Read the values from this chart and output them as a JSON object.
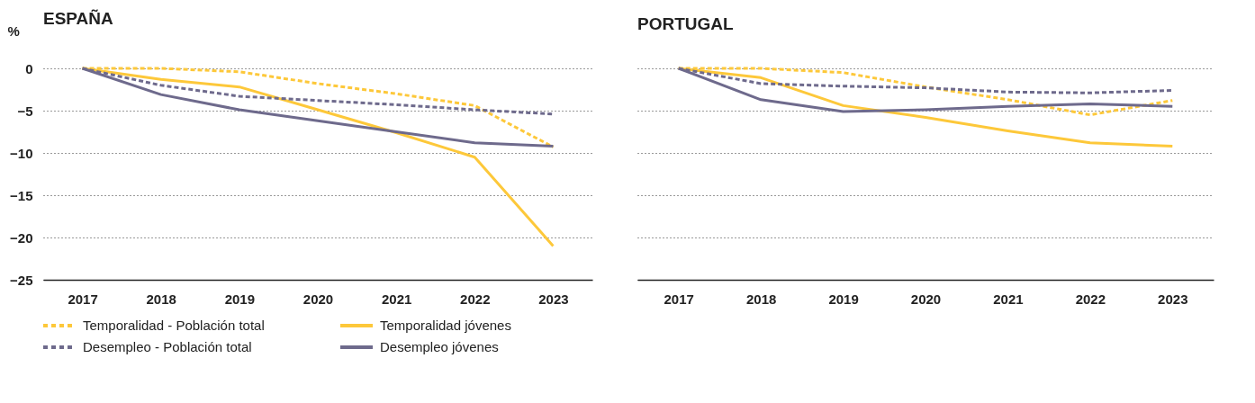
{
  "chart_data": [
    {
      "type": "line",
      "title": "ESPAÑA",
      "ylabel": "%",
      "categories": [
        "2017",
        "2018",
        "2019",
        "2020",
        "2021",
        "2022",
        "2023"
      ],
      "ylim": [
        -25,
        0
      ],
      "yticks": [
        0,
        -5,
        -10,
        -15,
        -20,
        -25
      ],
      "grid": "y",
      "legend": "bottom",
      "series": [
        {
          "name": "Temporalidad - Población total",
          "color": "#fdc83a",
          "line_style": "dashed",
          "values": [
            0,
            0,
            -0.4,
            -1.8,
            -3,
            -4.4,
            -9.3
          ]
        },
        {
          "name": "Temporalidad jóvenes",
          "color": "#fdc83a",
          "line_style": "solid",
          "values": [
            0,
            -1.3,
            -2.2,
            -4.9,
            -7.6,
            -10.5,
            -21
          ]
        },
        {
          "name": "Desempleo - Población total",
          "color": "#6e6a8c",
          "line_style": "dashed",
          "values": [
            0,
            -2,
            -3.3,
            -3.8,
            -4.3,
            -4.9,
            -5.4
          ]
        },
        {
          "name": "Desempleo jóvenes",
          "color": "#6e6a8c",
          "line_style": "solid",
          "values": [
            0,
            -3.1,
            -4.9,
            -6.2,
            -7.5,
            -8.8,
            -9.2
          ]
        }
      ]
    },
    {
      "type": "line",
      "title": "PORTUGAL",
      "categories": [
        "2017",
        "2018",
        "2019",
        "2020",
        "2021",
        "2022",
        "2023"
      ],
      "ylim": [
        -25,
        0
      ],
      "yticks": [
        0,
        -5,
        -10,
        -15,
        -20,
        -25
      ],
      "grid": "y",
      "tick_labels": "x",
      "series": [
        {
          "color": "#fdc83a",
          "line_style": "dashed",
          "values": [
            0,
            0,
            -0.5,
            -2.2,
            -3.7,
            -5.5,
            -3.8
          ]
        },
        {
          "color": "#fdc83a",
          "line_style": "solid",
          "values": [
            0,
            -1.1,
            -4.4,
            -5.8,
            -7.4,
            -8.8,
            -9.2
          ]
        },
        {
          "color": "#6e6a8c",
          "line_style": "dashed",
          "values": [
            0,
            -1.8,
            -2.1,
            -2.3,
            -2.8,
            -2.9,
            -2.6
          ]
        },
        {
          "color": "#6e6a8c",
          "line_style": "solid",
          "values": [
            0,
            -3.7,
            -5.1,
            -4.9,
            -4.5,
            -4.2,
            -4.5
          ]
        }
      ]
    }
  ]
}
